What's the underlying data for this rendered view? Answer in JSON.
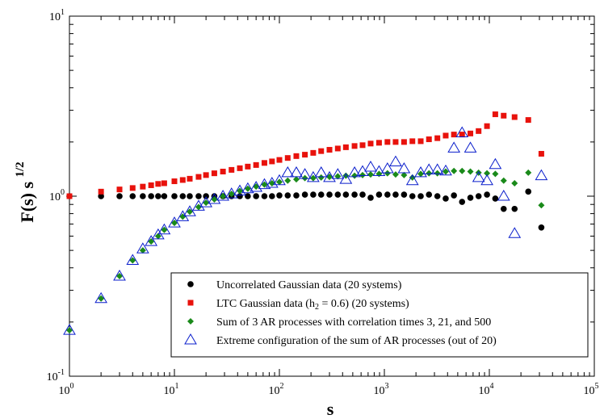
{
  "chart_data": {
    "type": "scatter",
    "xscale": "log",
    "yscale": "log",
    "xlim": [
      1,
      100000
    ],
    "ylim": [
      0.1,
      10
    ],
    "xlabel": "s",
    "ylabel_main": "F(s) s",
    "ylabel_exp": "1/2",
    "x_ticks": [
      {
        "base": "10",
        "exp": "0"
      },
      {
        "base": "10",
        "exp": "1"
      },
      {
        "base": "10",
        "exp": "2"
      },
      {
        "base": "10",
        "exp": "3"
      },
      {
        "base": "10",
        "exp": "4"
      },
      {
        "base": "10",
        "exp": "5"
      }
    ],
    "y_ticks": [
      {
        "base": "10",
        "exp": "-1"
      },
      {
        "base": "10",
        "exp": "0"
      },
      {
        "base": "10",
        "exp": "1"
      }
    ],
    "legend_position": "bottom-right",
    "series": [
      {
        "name": "Uncorrelated Gaussian data (20 systems)",
        "marker": "circle",
        "color": "#000000",
        "points": [
          [
            1,
            1.0
          ],
          [
            2,
            1.0
          ],
          [
            3,
            1.0
          ],
          [
            4,
            1.0
          ],
          [
            5,
            1.0
          ],
          [
            6,
            1.0
          ],
          [
            7,
            1.0
          ],
          [
            8,
            1.0
          ],
          [
            10,
            1.0
          ],
          [
            12,
            1.0
          ],
          [
            14,
            1.0
          ],
          [
            17,
            1.0
          ],
          [
            20,
            1.0
          ],
          [
            24,
            1.0
          ],
          [
            29,
            1.0
          ],
          [
            35,
            1.0
          ],
          [
            42,
            1.0
          ],
          [
            50,
            1.0
          ],
          [
            60,
            1.0
          ],
          [
            72,
            1.0
          ],
          [
            85,
            1.0
          ],
          [
            100,
            1.01
          ],
          [
            120,
            1.01
          ],
          [
            145,
            1.01
          ],
          [
            175,
            1.02
          ],
          [
            210,
            1.02
          ],
          [
            250,
            1.02
          ],
          [
            300,
            1.02
          ],
          [
            360,
            1.02
          ],
          [
            430,
            1.02
          ],
          [
            520,
            1.02
          ],
          [
            620,
            1.02
          ],
          [
            740,
            0.98
          ],
          [
            890,
            1.02
          ],
          [
            1070,
            1.02
          ],
          [
            1280,
            1.02
          ],
          [
            1540,
            1.02
          ],
          [
            1850,
            1.0
          ],
          [
            2220,
            1.0
          ],
          [
            2660,
            1.02
          ],
          [
            3200,
            1.0
          ],
          [
            3840,
            0.97
          ],
          [
            4600,
            1.01
          ],
          [
            5500,
            0.93
          ],
          [
            6600,
            0.98
          ],
          [
            7900,
            1.0
          ],
          [
            9500,
            1.02
          ],
          [
            11400,
            0.97
          ],
          [
            13700,
            0.85
          ],
          [
            17400,
            0.85
          ],
          [
            23500,
            1.06
          ],
          [
            31300,
            0.67
          ]
        ]
      },
      {
        "name": "LTC Gaussian data (h2 = 0.6) (20 systems)",
        "marker": "square",
        "color": "#e8120c",
        "points": [
          [
            1,
            1.0
          ],
          [
            2,
            1.06
          ],
          [
            3,
            1.09
          ],
          [
            4,
            1.11
          ],
          [
            5,
            1.13
          ],
          [
            6,
            1.15
          ],
          [
            7,
            1.17
          ],
          [
            8,
            1.18
          ],
          [
            10,
            1.21
          ],
          [
            12,
            1.23
          ],
          [
            14,
            1.25
          ],
          [
            17,
            1.28
          ],
          [
            20,
            1.31
          ],
          [
            24,
            1.34
          ],
          [
            29,
            1.37
          ],
          [
            35,
            1.4
          ],
          [
            42,
            1.43
          ],
          [
            50,
            1.46
          ],
          [
            60,
            1.49
          ],
          [
            72,
            1.53
          ],
          [
            85,
            1.56
          ],
          [
            100,
            1.59
          ],
          [
            120,
            1.63
          ],
          [
            145,
            1.67
          ],
          [
            175,
            1.7
          ],
          [
            210,
            1.74
          ],
          [
            250,
            1.78
          ],
          [
            300,
            1.81
          ],
          [
            360,
            1.84
          ],
          [
            430,
            1.87
          ],
          [
            520,
            1.9
          ],
          [
            620,
            1.92
          ],
          [
            740,
            1.96
          ],
          [
            890,
            1.98
          ],
          [
            1070,
            2.0
          ],
          [
            1280,
            2.0
          ],
          [
            1540,
            2.0
          ],
          [
            1850,
            2.02
          ],
          [
            2220,
            2.02
          ],
          [
            2660,
            2.07
          ],
          [
            3200,
            2.1
          ],
          [
            3840,
            2.17
          ],
          [
            4600,
            2.2
          ],
          [
            5500,
            2.2
          ],
          [
            6600,
            2.23
          ],
          [
            7900,
            2.3
          ],
          [
            9500,
            2.45
          ],
          [
            11400,
            2.85
          ],
          [
            13700,
            2.8
          ],
          [
            17400,
            2.75
          ],
          [
            23500,
            2.65
          ],
          [
            31300,
            1.72
          ]
        ]
      },
      {
        "name": "Sum of 3 AR processes with correlation times 3, 21, and 500",
        "marker": "diamond",
        "color": "#1a8a1a",
        "points": [
          [
            1,
            0.18
          ],
          [
            2,
            0.27
          ],
          [
            3,
            0.36
          ],
          [
            4,
            0.44
          ],
          [
            5,
            0.5
          ],
          [
            6,
            0.56
          ],
          [
            7,
            0.6
          ],
          [
            8,
            0.65
          ],
          [
            10,
            0.71
          ],
          [
            12,
            0.77
          ],
          [
            14,
            0.82
          ],
          [
            17,
            0.87
          ],
          [
            20,
            0.92
          ],
          [
            24,
            0.96
          ],
          [
            29,
            1.0
          ],
          [
            35,
            1.03
          ],
          [
            42,
            1.07
          ],
          [
            50,
            1.1
          ],
          [
            60,
            1.13
          ],
          [
            72,
            1.16
          ],
          [
            85,
            1.18
          ],
          [
            100,
            1.2
          ],
          [
            120,
            1.22
          ],
          [
            145,
            1.24
          ],
          [
            175,
            1.26
          ],
          [
            210,
            1.26
          ],
          [
            250,
            1.27
          ],
          [
            300,
            1.28
          ],
          [
            360,
            1.29
          ],
          [
            430,
            1.3
          ],
          [
            520,
            1.3
          ],
          [
            620,
            1.31
          ],
          [
            740,
            1.32
          ],
          [
            890,
            1.33
          ],
          [
            1070,
            1.34
          ],
          [
            1280,
            1.32
          ],
          [
            1540,
            1.31
          ],
          [
            1850,
            1.27
          ],
          [
            2220,
            1.33
          ],
          [
            2660,
            1.34
          ],
          [
            3200,
            1.34
          ],
          [
            3840,
            1.37
          ],
          [
            4600,
            1.38
          ],
          [
            5500,
            1.38
          ],
          [
            6600,
            1.37
          ],
          [
            7900,
            1.35
          ],
          [
            9500,
            1.34
          ],
          [
            11400,
            1.33
          ],
          [
            13700,
            1.22
          ],
          [
            17400,
            1.18
          ],
          [
            23500,
            1.35
          ],
          [
            31300,
            0.89
          ]
        ]
      },
      {
        "name": "Extreme configuration of the sum of AR processes (out of 20)",
        "marker": "triangle",
        "color": "#0a1ecc",
        "points": [
          [
            1,
            0.18
          ],
          [
            2,
            0.27
          ],
          [
            3,
            0.36
          ],
          [
            4,
            0.44
          ],
          [
            5,
            0.51
          ],
          [
            6,
            0.56
          ],
          [
            7,
            0.61
          ],
          [
            8,
            0.65
          ],
          [
            10,
            0.71
          ],
          [
            12,
            0.77
          ],
          [
            14,
            0.82
          ],
          [
            17,
            0.88
          ],
          [
            20,
            0.92
          ],
          [
            24,
            0.96
          ],
          [
            29,
            1.0
          ],
          [
            35,
            1.03
          ],
          [
            42,
            1.07
          ],
          [
            50,
            1.1
          ],
          [
            60,
            1.12
          ],
          [
            72,
            1.16
          ],
          [
            85,
            1.18
          ],
          [
            100,
            1.22
          ],
          [
            120,
            1.35
          ],
          [
            145,
            1.35
          ],
          [
            175,
            1.32
          ],
          [
            210,
            1.27
          ],
          [
            250,
            1.35
          ],
          [
            300,
            1.27
          ],
          [
            360,
            1.32
          ],
          [
            430,
            1.24
          ],
          [
            520,
            1.35
          ],
          [
            620,
            1.37
          ],
          [
            740,
            1.45
          ],
          [
            890,
            1.37
          ],
          [
            1070,
            1.42
          ],
          [
            1280,
            1.55
          ],
          [
            1540,
            1.42
          ],
          [
            1850,
            1.22
          ],
          [
            2220,
            1.35
          ],
          [
            2660,
            1.4
          ],
          [
            3200,
            1.4
          ],
          [
            3840,
            1.38
          ],
          [
            4600,
            1.85
          ],
          [
            5500,
            2.25
          ],
          [
            6600,
            1.85
          ],
          [
            7900,
            1.27
          ],
          [
            9500,
            1.22
          ],
          [
            11400,
            1.5
          ],
          [
            13700,
            1.0
          ],
          [
            17400,
            0.62
          ],
          [
            31300,
            1.3
          ]
        ]
      }
    ],
    "legend_label_parts": {
      "ltc_prefix": "LTC Gaussian data (h",
      "ltc_sub": "2",
      "ltc_suffix": " = 0.6) (20 systems)"
    }
  }
}
